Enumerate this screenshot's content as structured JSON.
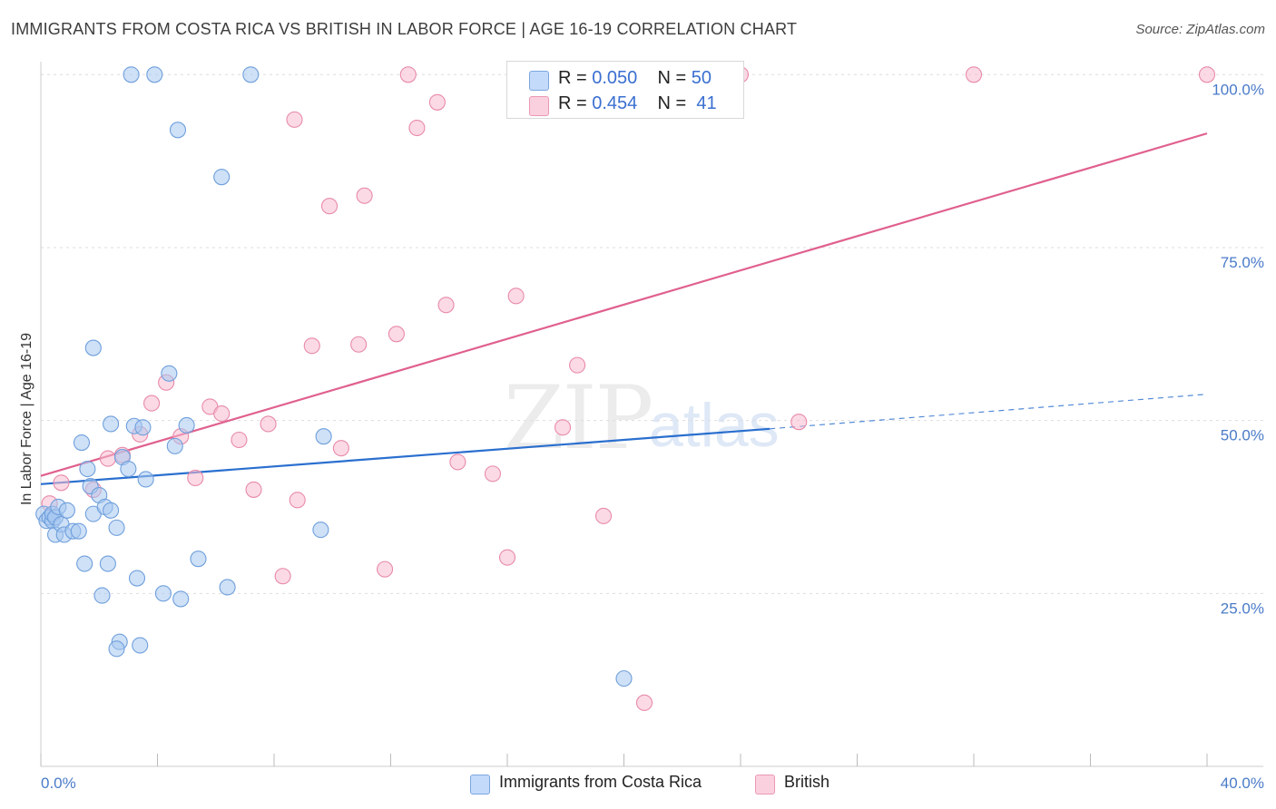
{
  "header": {
    "title": "IMMIGRANTS FROM COSTA RICA VS BRITISH IN LABOR FORCE | AGE 16-19 CORRELATION CHART",
    "source": "Source: ZipAtlas.com"
  },
  "watermark": {
    "zip": "ZIP",
    "atlas": "atlas"
  },
  "legend": {
    "row1": {
      "r_label": "R =",
      "r_value": "0.050",
      "n_label": "N =",
      "n_value": "50"
    },
    "row2": {
      "r_label": "R =",
      "r_value": "0.454",
      "n_label": "N =",
      "n_value": "41"
    }
  },
  "bottom_legend": {
    "series1": "Immigrants from Costa Rica",
    "series2": "British"
  },
  "colors": {
    "blue_fill": "#a8c8f0",
    "blue_stroke": "#6f9fdc",
    "blue_line": "#2a6fcf",
    "pink_fill": "#f7bcd0",
    "pink_stroke": "#e88aaa",
    "pink_line": "#e0608e",
    "grid": "#dddddd",
    "tick_text": "#4a7bc8"
  },
  "chart_data": {
    "type": "scatter",
    "title": "IMMIGRANTS FROM COSTA RICA VS BRITISH IN LABOR FORCE | AGE 16-19 CORRELATION CHART",
    "xlabel": "",
    "ylabel": "In Labor Force | Age 16-19",
    "xlim": [
      0,
      40
    ],
    "ylim": [
      0,
      100
    ],
    "x_tick_labels": [
      "0.0%",
      "40.0%"
    ],
    "y_ticks": [
      25,
      50,
      75,
      100
    ],
    "y_tick_labels": [
      "25.0%",
      "50.0%",
      "75.0%",
      "100.0%"
    ],
    "grid": true,
    "series": [
      {
        "name": "Immigrants from Costa Rica",
        "r": 0.05,
        "n": 50,
        "trend": {
          "x": [
            0,
            25
          ],
          "y": [
            40.8,
            48.8
          ],
          "dashed_x": [
            25,
            40
          ],
          "dashed_y": [
            48.8,
            53.8
          ]
        },
        "points": [
          [
            0.1,
            36.5
          ],
          [
            0.2,
            35.5
          ],
          [
            0.3,
            36.0
          ],
          [
            0.4,
            35.5
          ],
          [
            0.4,
            36.5
          ],
          [
            0.5,
            36.0
          ],
          [
            0.6,
            37.5
          ],
          [
            0.5,
            33.5
          ],
          [
            0.7,
            35.0
          ],
          [
            0.8,
            33.5
          ],
          [
            0.9,
            37.0
          ],
          [
            1.1,
            34.0
          ],
          [
            1.3,
            34.0
          ],
          [
            1.4,
            46.8
          ],
          [
            1.5,
            29.3
          ],
          [
            1.6,
            43.0
          ],
          [
            1.7,
            40.5
          ],
          [
            1.8,
            60.5
          ],
          [
            1.8,
            36.5
          ],
          [
            2.0,
            39.2
          ],
          [
            2.1,
            24.7
          ],
          [
            2.2,
            37.5
          ],
          [
            2.3,
            29.3
          ],
          [
            2.4,
            49.5
          ],
          [
            2.4,
            37.0
          ],
          [
            2.6,
            34.5
          ],
          [
            2.7,
            18.0
          ],
          [
            2.8,
            44.7
          ],
          [
            3.0,
            43.0
          ],
          [
            3.2,
            49.2
          ],
          [
            3.3,
            27.2
          ],
          [
            3.4,
            17.5
          ],
          [
            3.5,
            49.0
          ],
          [
            3.6,
            41.5
          ],
          [
            4.2,
            25.0
          ],
          [
            4.4,
            56.8
          ],
          [
            4.6,
            46.3
          ],
          [
            4.8,
            24.2
          ],
          [
            5.0,
            49.3
          ],
          [
            5.4,
            30.0
          ],
          [
            6.4,
            25.9
          ],
          [
            9.6,
            34.2
          ],
          [
            9.7,
            47.7
          ],
          [
            2.6,
            17.0
          ],
          [
            3.1,
            100.0
          ],
          [
            3.9,
            100.0
          ],
          [
            7.2,
            100.0
          ],
          [
            4.7,
            92.0
          ],
          [
            6.2,
            85.2
          ],
          [
            20.0,
            12.7
          ]
        ]
      },
      {
        "name": "British",
        "r": 0.454,
        "n": 41,
        "trend": {
          "x": [
            0,
            40
          ],
          "y": [
            42.0,
            91.5
          ]
        },
        "points": [
          [
            0.3,
            38.0
          ],
          [
            0.7,
            41.0
          ],
          [
            1.8,
            40.0
          ],
          [
            2.3,
            44.5
          ],
          [
            2.8,
            45.0
          ],
          [
            3.4,
            48.0
          ],
          [
            3.8,
            52.5
          ],
          [
            4.3,
            55.5
          ],
          [
            4.8,
            47.7
          ],
          [
            5.3,
            41.7
          ],
          [
            5.8,
            52.0
          ],
          [
            6.2,
            51.0
          ],
          [
            6.8,
            47.2
          ],
          [
            7.3,
            40.0
          ],
          [
            7.8,
            49.5
          ],
          [
            8.3,
            27.5
          ],
          [
            8.8,
            38.5
          ],
          [
            9.3,
            60.8
          ],
          [
            9.9,
            81.0
          ],
          [
            10.3,
            46.0
          ],
          [
            10.9,
            61.0
          ],
          [
            11.1,
            82.5
          ],
          [
            11.8,
            28.5
          ],
          [
            12.6,
            100.0
          ],
          [
            12.9,
            92.3
          ],
          [
            13.6,
            96.0
          ],
          [
            13.9,
            66.7
          ],
          [
            14.3,
            44.0
          ],
          [
            15.5,
            42.3
          ],
          [
            16.0,
            30.2
          ],
          [
            16.3,
            68.0
          ],
          [
            17.9,
            49.0
          ],
          [
            18.4,
            58.0
          ],
          [
            19.3,
            36.2
          ],
          [
            20.7,
            9.2
          ],
          [
            24.0,
            100.0
          ],
          [
            26.0,
            49.8
          ],
          [
            32.0,
            100.0
          ],
          [
            40.0,
            100.0
          ],
          [
            8.7,
            93.5
          ],
          [
            12.2,
            62.5
          ]
        ]
      }
    ]
  }
}
